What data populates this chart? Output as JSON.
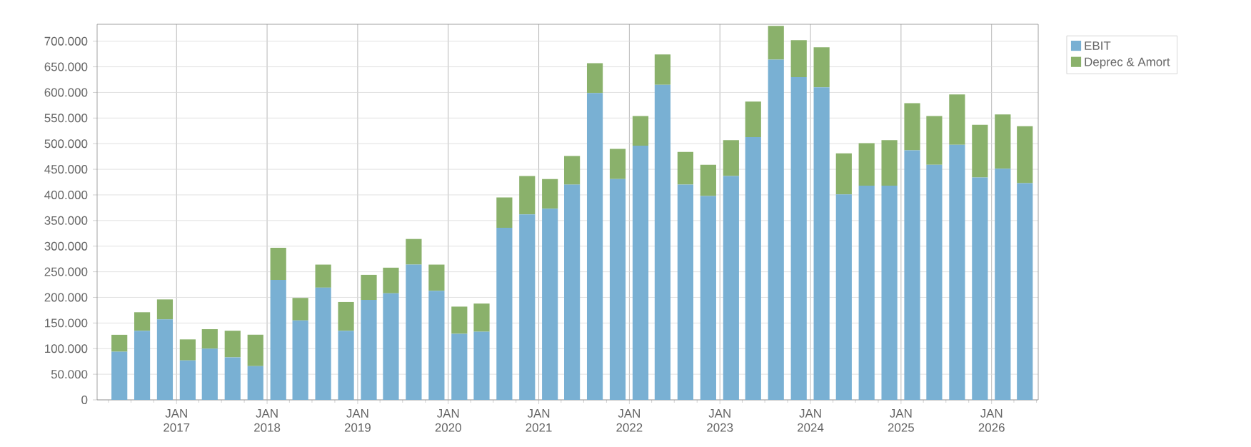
{
  "chart_data": {
    "type": "bar",
    "stacked": true,
    "x": [
      "2016-05-15",
      "2016-08-15",
      "2016-11-15",
      "2017-02-15",
      "2017-05-15",
      "2017-08-15",
      "2017-11-15",
      "2018-02-15",
      "2018-05-15",
      "2018-08-15",
      "2018-11-15",
      "2019-02-15",
      "2019-05-15",
      "2019-08-15",
      "2019-11-15",
      "2020-02-15",
      "2020-05-15",
      "2020-08-15",
      "2020-11-15",
      "2021-02-15",
      "2021-05-15",
      "2021-08-15",
      "2021-11-15",
      "2022-02-15",
      "2022-05-15",
      "2022-08-15",
      "2022-11-15",
      "2023-02-15",
      "2023-05-15",
      "2023-08-15",
      "2023-11-15",
      "2024-02-15",
      "2024-05-15",
      "2024-08-15",
      "2024-11-15",
      "2025-02-15",
      "2025-05-15",
      "2025-08-15",
      "2025-11-15",
      "2026-02-15",
      "2026-05-15"
    ],
    "series": [
      {
        "name": "EBIT",
        "color": "#79b0d3",
        "values": [
          94000,
          135000,
          157000,
          77000,
          100000,
          83000,
          66000,
          234000,
          155000,
          219000,
          135000,
          195000,
          208000,
          264000,
          213000,
          129000,
          133000,
          336000,
          362000,
          373000,
          420000,
          599000,
          431000,
          496000,
          615000,
          420000,
          398000,
          437000,
          513000,
          664000,
          630000,
          610000,
          401000,
          418000,
          418000,
          487000,
          459000,
          498000,
          434000,
          451000,
          423000
        ]
      },
      {
        "name": "Deprec & Amort",
        "color": "#8ab16b",
        "values": [
          33000,
          36000,
          39000,
          41000,
          38000,
          52000,
          61000,
          63000,
          44000,
          45000,
          56000,
          49000,
          50000,
          50000,
          51000,
          53000,
          55000,
          59000,
          75000,
          58000,
          56000,
          58000,
          59000,
          58000,
          59000,
          64000,
          61000,
          70000,
          69000,
          66000,
          72000,
          78000,
          80000,
          83000,
          89000,
          92000,
          95000,
          98000,
          103000,
          106000,
          111000
        ]
      }
    ],
    "xlim": [
      "2016-02-15",
      "2026-07-08"
    ],
    "xticks": [
      {
        "value": "2016-04-01",
        "label": null
      },
      {
        "value": "2016-07-01",
        "label": null
      },
      {
        "value": "2016-10-01",
        "label": null
      },
      {
        "value": "2017-01-01",
        "label": "JAN 2017"
      },
      {
        "value": "2017-04-01",
        "label": null
      },
      {
        "value": "2017-07-01",
        "label": null
      },
      {
        "value": "2017-10-01",
        "label": null
      },
      {
        "value": "2018-01-01",
        "label": "JAN 2018"
      },
      {
        "value": "2018-04-01",
        "label": null
      },
      {
        "value": "2018-07-01",
        "label": null
      },
      {
        "value": "2018-10-01",
        "label": null
      },
      {
        "value": "2019-01-01",
        "label": "JAN 2019"
      },
      {
        "value": "2019-04-01",
        "label": null
      },
      {
        "value": "2019-07-01",
        "label": null
      },
      {
        "value": "2019-10-01",
        "label": null
      },
      {
        "value": "2020-01-01",
        "label": "JAN 2020"
      },
      {
        "value": "2020-04-01",
        "label": null
      },
      {
        "value": "2020-07-01",
        "label": null
      },
      {
        "value": "2020-10-01",
        "label": null
      },
      {
        "value": "2021-01-01",
        "label": "JAN 2021"
      },
      {
        "value": "2021-04-01",
        "label": null
      },
      {
        "value": "2021-07-01",
        "label": null
      },
      {
        "value": "2021-10-01",
        "label": null
      },
      {
        "value": "2022-01-01",
        "label": "JAN 2022"
      },
      {
        "value": "2022-04-01",
        "label": null
      },
      {
        "value": "2022-07-01",
        "label": null
      },
      {
        "value": "2022-10-01",
        "label": null
      },
      {
        "value": "2023-01-01",
        "label": "JAN 2023"
      },
      {
        "value": "2023-04-01",
        "label": null
      },
      {
        "value": "2023-07-01",
        "label": null
      },
      {
        "value": "2023-10-01",
        "label": null
      },
      {
        "value": "2024-01-01",
        "label": "JAN 2024"
      },
      {
        "value": "2024-04-01",
        "label": null
      },
      {
        "value": "2024-07-01",
        "label": null
      },
      {
        "value": "2024-10-01",
        "label": null
      },
      {
        "value": "2025-01-01",
        "label": "JAN 2025"
      },
      {
        "value": "2025-04-01",
        "label": null
      },
      {
        "value": "2025-07-01",
        "label": null
      },
      {
        "value": "2025-10-01",
        "label": null
      },
      {
        "value": "2026-01-01",
        "label": "JAN 2026"
      },
      {
        "value": "2026-04-01",
        "label": null
      },
      {
        "value": "2026-07-01",
        "label": null
      }
    ],
    "ylim": [
      0,
      733000
    ],
    "yticks": [
      0,
      {
        "value": 50000,
        "label": "50.000"
      },
      {
        "value": 100000,
        "label": "100.000"
      },
      {
        "value": 150000,
        "label": "150.000"
      },
      {
        "value": 200000,
        "label": "200.000"
      },
      {
        "value": 250000,
        "label": "250.000"
      },
      {
        "value": 300000,
        "label": "300.000"
      },
      {
        "value": 350000,
        "label": "350.000"
      },
      {
        "value": 400000,
        "label": "400.000"
      },
      {
        "value": 450000,
        "label": "450.000"
      },
      {
        "value": 500000,
        "label": "500.000"
      },
      {
        "value": 550000,
        "label": "550.000"
      },
      {
        "value": 600000,
        "label": "600.000"
      },
      {
        "value": 650000,
        "label": "650.000"
      },
      {
        "value": 700000,
        "label": "700.000"
      }
    ],
    "grid": true,
    "legend": "top right"
  }
}
